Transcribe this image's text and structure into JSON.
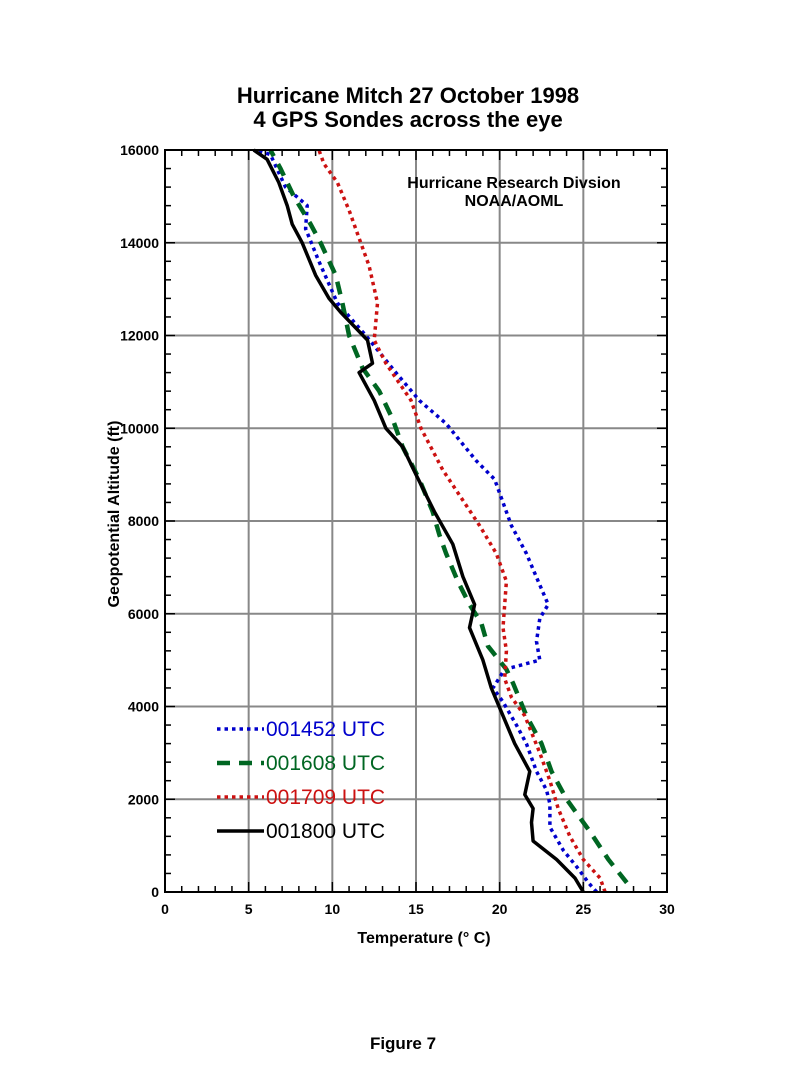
{
  "chart_data": {
    "type": "line",
    "title": "Hurricane Mitch 27 October 1998",
    "subtitle": "4 GPS Sondes across the eye",
    "xlabel": "Temperature (° C)",
    "ylabel": "Geopotential Altitude (ft)",
    "xlim": [
      0,
      30
    ],
    "ylim": [
      0,
      16000
    ],
    "xticks": [
      0,
      5,
      10,
      15,
      20,
      25,
      30
    ],
    "yticks": [
      0,
      2000,
      4000,
      6000,
      8000,
      10000,
      12000,
      14000,
      16000
    ],
    "grid": true,
    "legend_position": "bottom-left",
    "annotation_lines": [
      "Hurricane Research Divsion",
      "NOAA/AOML"
    ],
    "series": [
      {
        "name": "001452 UTC",
        "color": "#0000cc",
        "style": "dotted",
        "points": [
          [
            25.8,
            0
          ],
          [
            25.3,
            200
          ],
          [
            24.7,
            500
          ],
          [
            23.8,
            900
          ],
          [
            23.0,
            1400
          ],
          [
            23.0,
            1900
          ],
          [
            22.8,
            2200
          ],
          [
            22.2,
            2600
          ],
          [
            21.6,
            3200
          ],
          [
            21.0,
            3600
          ],
          [
            20.2,
            4100
          ],
          [
            19.6,
            4400
          ],
          [
            20.3,
            4800
          ],
          [
            22.4,
            5000
          ],
          [
            22.2,
            5400
          ],
          [
            22.4,
            5900
          ],
          [
            22.9,
            6200
          ],
          [
            22.3,
            6700
          ],
          [
            21.6,
            7300
          ],
          [
            20.7,
            7900
          ],
          [
            19.7,
            8900
          ],
          [
            18.6,
            9300
          ],
          [
            16.8,
            10100
          ],
          [
            15.2,
            10600
          ],
          [
            13.8,
            11200
          ],
          [
            12.0,
            12000
          ],
          [
            10.3,
            12700
          ],
          [
            9.2,
            13600
          ],
          [
            8.4,
            14300
          ],
          [
            8.5,
            14800
          ],
          [
            7.2,
            15200
          ],
          [
            6.3,
            15900
          ],
          [
            5.5,
            16000
          ]
        ]
      },
      {
        "name": "001608 UTC",
        "color": "#006622",
        "style": "dashed",
        "points": [
          [
            27.6,
            200
          ],
          [
            26.5,
            700
          ],
          [
            25.4,
            1300
          ],
          [
            24.0,
            2000
          ],
          [
            23.1,
            2600
          ],
          [
            22.5,
            3200
          ],
          [
            21.6,
            3800
          ],
          [
            20.8,
            4500
          ],
          [
            20.4,
            4800
          ],
          [
            19.3,
            5300
          ],
          [
            18.9,
            5800
          ],
          [
            18.2,
            6200
          ],
          [
            17.5,
            6700
          ],
          [
            16.8,
            7300
          ],
          [
            16.4,
            7700
          ],
          [
            16.0,
            8200
          ],
          [
            15.2,
            8900
          ],
          [
            14.2,
            9600
          ],
          [
            13.6,
            10200
          ],
          [
            12.8,
            10800
          ],
          [
            11.8,
            11300
          ],
          [
            11.0,
            12000
          ],
          [
            10.6,
            12700
          ],
          [
            10.2,
            13300
          ],
          [
            9.3,
            14000
          ],
          [
            8.7,
            14400
          ],
          [
            7.7,
            15000
          ],
          [
            6.9,
            15600
          ],
          [
            6.3,
            16000
          ]
        ]
      },
      {
        "name": "001709 UTC",
        "color": "#cc1111",
        "style": "dotted",
        "points": [
          [
            26.3,
            0
          ],
          [
            26.0,
            300
          ],
          [
            25.0,
            700
          ],
          [
            24.2,
            1200
          ],
          [
            23.5,
            1800
          ],
          [
            23.0,
            2400
          ],
          [
            22.4,
            3000
          ],
          [
            21.5,
            3800
          ],
          [
            20.7,
            4200
          ],
          [
            20.3,
            4600
          ],
          [
            20.4,
            5200
          ],
          [
            20.2,
            5700
          ],
          [
            20.3,
            6200
          ],
          [
            20.4,
            6700
          ],
          [
            19.8,
            7300
          ],
          [
            18.8,
            7900
          ],
          [
            17.7,
            8500
          ],
          [
            16.6,
            9100
          ],
          [
            15.3,
            10000
          ],
          [
            14.7,
            10600
          ],
          [
            13.2,
            11400
          ],
          [
            12.5,
            11900
          ],
          [
            12.7,
            12700
          ],
          [
            12.2,
            13500
          ],
          [
            11.5,
            14200
          ],
          [
            11.0,
            14700
          ],
          [
            10.3,
            15300
          ],
          [
            9.5,
            15700
          ],
          [
            9.2,
            16000
          ]
        ]
      },
      {
        "name": "001800 UTC",
        "color": "#000000",
        "style": "solid",
        "points": [
          [
            25.0,
            0
          ],
          [
            24.5,
            300
          ],
          [
            23.4,
            700
          ],
          [
            22.0,
            1100
          ],
          [
            21.9,
            1500
          ],
          [
            22.0,
            1800
          ],
          [
            21.5,
            2100
          ],
          [
            21.8,
            2600
          ],
          [
            20.9,
            3200
          ],
          [
            20.2,
            3800
          ],
          [
            19.5,
            4400
          ],
          [
            19.0,
            5000
          ],
          [
            18.2,
            5700
          ],
          [
            18.5,
            6200
          ],
          [
            17.8,
            6800
          ],
          [
            17.2,
            7500
          ],
          [
            16.1,
            8200
          ],
          [
            15.0,
            9000
          ],
          [
            14.2,
            9600
          ],
          [
            13.2,
            10000
          ],
          [
            12.5,
            10600
          ],
          [
            11.6,
            11200
          ],
          [
            12.4,
            11400
          ],
          [
            12.1,
            11900
          ],
          [
            10.5,
            12500
          ],
          [
            9.8,
            12800
          ],
          [
            9.0,
            13300
          ],
          [
            8.2,
            14000
          ],
          [
            7.6,
            14400
          ],
          [
            7.3,
            14800
          ],
          [
            6.8,
            15300
          ],
          [
            6.1,
            15800
          ],
          [
            5.3,
            16000
          ]
        ]
      }
    ]
  },
  "figure_caption": "Figure 7"
}
